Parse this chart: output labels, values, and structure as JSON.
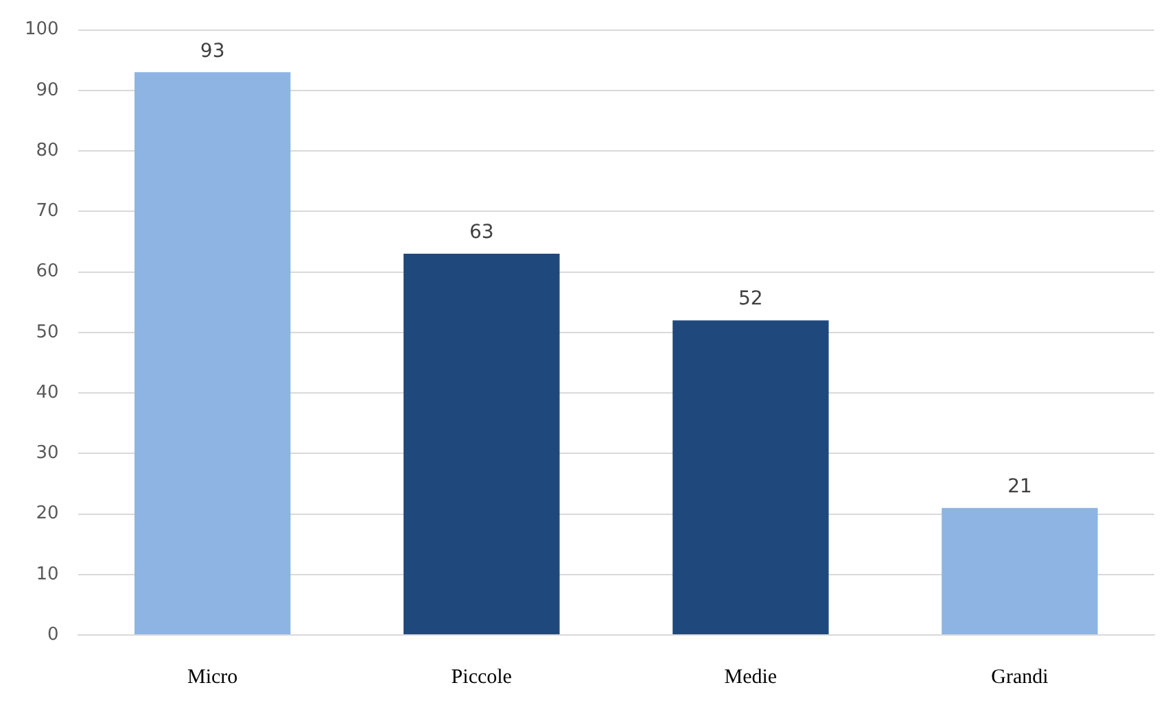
{
  "chart_data": {
    "type": "bar",
    "categories": [
      "Micro",
      "Piccole",
      "Medie",
      "Grandi"
    ],
    "values": [
      93,
      63,
      52,
      21
    ],
    "colors": [
      "#8eb4e3",
      "#1f497d",
      "#1f497d",
      "#8eb4e3"
    ],
    "ylim": [
      0,
      100
    ],
    "yticks": [
      0,
      10,
      20,
      30,
      40,
      50,
      60,
      70,
      80,
      90,
      100
    ],
    "grid": "y",
    "legend": false,
    "data_labels": true
  }
}
